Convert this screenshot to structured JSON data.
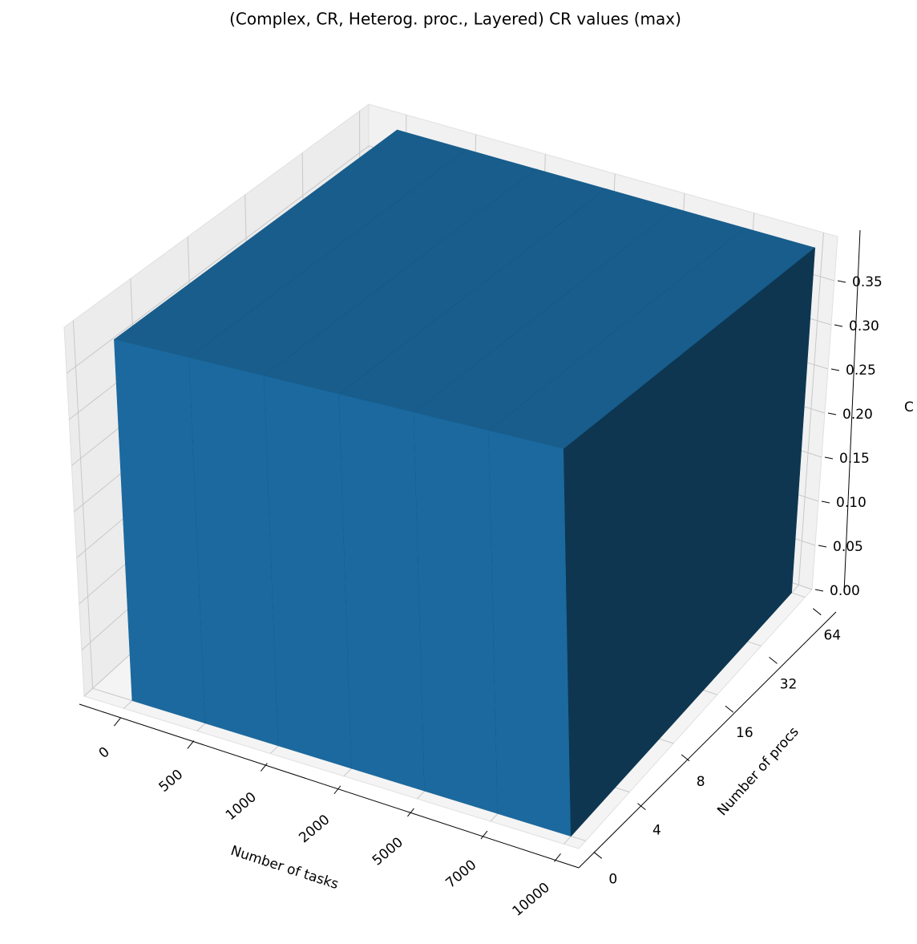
{
  "chart_data": {
    "type": "bar3d",
    "title": "(Complex, CR, Heterog. proc., Layered) CR values (max)",
    "x_label": "Number of tasks",
    "y_label": "Number of procs",
    "z_label": "C",
    "x_ticks": [
      "0",
      "500",
      "1000",
      "2000",
      "5000",
      "7000",
      "10000"
    ],
    "y_ticks": [
      "0",
      "4",
      "8",
      "16",
      "32",
      "64"
    ],
    "values": [
      [
        0.39,
        0.39,
        0.39,
        0.39,
        0.39,
        0.39
      ],
      [
        0.39,
        0.39,
        0.39,
        0.39,
        0.39,
        0.39
      ],
      [
        0.39,
        0.39,
        0.39,
        0.39,
        0.39,
        0.39
      ],
      [
        0.39,
        0.39,
        0.39,
        0.39,
        0.39,
        0.39
      ],
      [
        0.39,
        0.39,
        0.39,
        0.39,
        0.39,
        0.39
      ]
    ],
    "color": "#1f77b4",
    "zlim": [
      0,
      0.4
    ],
    "zticks": [
      {
        "value": 0,
        "label": "0.00"
      },
      0.05,
      {
        "value": 0.1,
        "label": "0.10"
      },
      0.15,
      {
        "value": 0.2,
        "label": "0.20"
      },
      0.25,
      {
        "value": 0.3,
        "label": "0.30"
      },
      0.35
    ],
    "grid": true
  }
}
